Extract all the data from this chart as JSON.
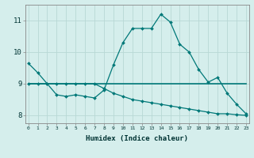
{
  "xlabel": "Humidex (Indice chaleur)",
  "bg_color": "#d5eeec",
  "grid_color": "#b8d8d5",
  "line_color": "#007878",
  "curve1_x": [
    0,
    1,
    2,
    3,
    4,
    5,
    6,
    7,
    8,
    9,
    10,
    11,
    12,
    13,
    14,
    15,
    16,
    17,
    18,
    19,
    20,
    21,
    22,
    23
  ],
  "curve1_y": [
    9.65,
    9.35,
    9.0,
    8.65,
    8.6,
    8.65,
    8.6,
    8.55,
    8.8,
    9.6,
    10.3,
    10.75,
    10.75,
    10.75,
    11.2,
    10.95,
    10.25,
    10.0,
    9.45,
    9.05,
    9.2,
    8.7,
    8.35,
    8.05
  ],
  "curve2_x": [
    0,
    1,
    2,
    3,
    4,
    5,
    6,
    7,
    8,
    9,
    10,
    11,
    12,
    13,
    14,
    15,
    16,
    17,
    18,
    19,
    20,
    21,
    22,
    23
  ],
  "curve2_y": [
    9.0,
    9.0,
    9.0,
    9.0,
    9.0,
    9.0,
    9.0,
    9.0,
    9.0,
    9.0,
    9.0,
    9.0,
    9.0,
    9.0,
    9.0,
    9.0,
    9.0,
    9.0,
    9.0,
    9.0,
    9.0,
    9.0,
    9.0,
    9.0
  ],
  "curve3_x": [
    0,
    1,
    2,
    3,
    4,
    5,
    6,
    7,
    8,
    9,
    10,
    11,
    12,
    13,
    14,
    15,
    16,
    17,
    18,
    19,
    20,
    21,
    22,
    23
  ],
  "curve3_y": [
    9.0,
    9.0,
    9.0,
    9.0,
    9.0,
    9.0,
    9.0,
    9.0,
    8.85,
    8.7,
    8.6,
    8.5,
    8.45,
    8.4,
    8.35,
    8.3,
    8.25,
    8.2,
    8.15,
    8.1,
    8.05,
    8.05,
    8.02,
    8.0
  ],
  "ylim": [
    7.75,
    11.5
  ],
  "yticks": [
    8,
    9,
    10,
    11
  ],
  "xticks": [
    0,
    1,
    2,
    3,
    4,
    5,
    6,
    7,
    8,
    9,
    10,
    11,
    12,
    13,
    14,
    15,
    16,
    17,
    18,
    19,
    20,
    21,
    22,
    23
  ],
  "xlim": [
    -0.3,
    23.3
  ]
}
